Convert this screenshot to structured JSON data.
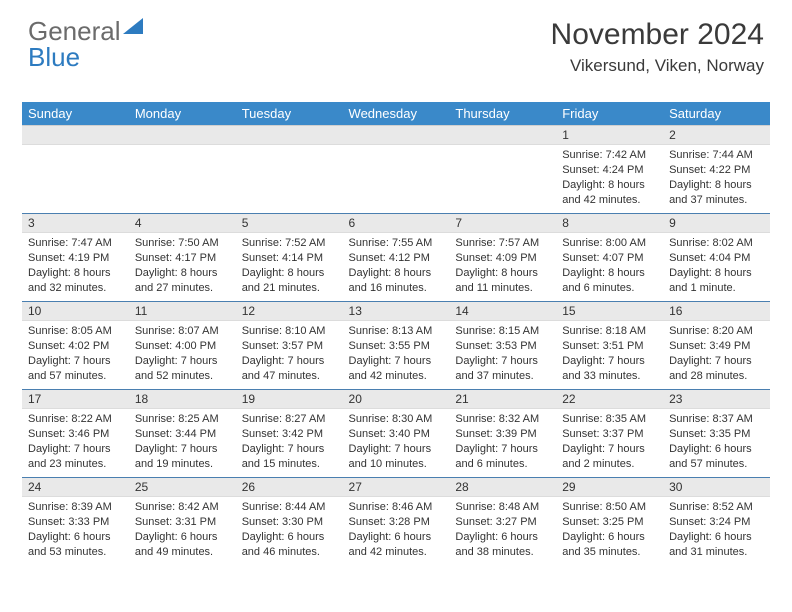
{
  "logo": {
    "line1": "General",
    "line2": "Blue"
  },
  "header": {
    "month_title": "November 2024",
    "location": "Vikersund, Viken, Norway"
  },
  "calendar": {
    "type": "table",
    "columns": [
      "Sunday",
      "Monday",
      "Tuesday",
      "Wednesday",
      "Thursday",
      "Friday",
      "Saturday"
    ],
    "header_bg": "#3a89c9",
    "header_fg": "#ffffff",
    "row_border_color": "#4a7fb0",
    "daynum_bg": "#e9e9e9",
    "body_fontsize": 11,
    "weeks": [
      [
        null,
        null,
        null,
        null,
        null,
        {
          "n": "1",
          "sunrise": "Sunrise: 7:42 AM",
          "sunset": "Sunset: 4:24 PM",
          "daylight1": "Daylight: 8 hours",
          "daylight2": "and 42 minutes."
        },
        {
          "n": "2",
          "sunrise": "Sunrise: 7:44 AM",
          "sunset": "Sunset: 4:22 PM",
          "daylight1": "Daylight: 8 hours",
          "daylight2": "and 37 minutes."
        }
      ],
      [
        {
          "n": "3",
          "sunrise": "Sunrise: 7:47 AM",
          "sunset": "Sunset: 4:19 PM",
          "daylight1": "Daylight: 8 hours",
          "daylight2": "and 32 minutes."
        },
        {
          "n": "4",
          "sunrise": "Sunrise: 7:50 AM",
          "sunset": "Sunset: 4:17 PM",
          "daylight1": "Daylight: 8 hours",
          "daylight2": "and 27 minutes."
        },
        {
          "n": "5",
          "sunrise": "Sunrise: 7:52 AM",
          "sunset": "Sunset: 4:14 PM",
          "daylight1": "Daylight: 8 hours",
          "daylight2": "and 21 minutes."
        },
        {
          "n": "6",
          "sunrise": "Sunrise: 7:55 AM",
          "sunset": "Sunset: 4:12 PM",
          "daylight1": "Daylight: 8 hours",
          "daylight2": "and 16 minutes."
        },
        {
          "n": "7",
          "sunrise": "Sunrise: 7:57 AM",
          "sunset": "Sunset: 4:09 PM",
          "daylight1": "Daylight: 8 hours",
          "daylight2": "and 11 minutes."
        },
        {
          "n": "8",
          "sunrise": "Sunrise: 8:00 AM",
          "sunset": "Sunset: 4:07 PM",
          "daylight1": "Daylight: 8 hours",
          "daylight2": "and 6 minutes."
        },
        {
          "n": "9",
          "sunrise": "Sunrise: 8:02 AM",
          "sunset": "Sunset: 4:04 PM",
          "daylight1": "Daylight: 8 hours",
          "daylight2": "and 1 minute."
        }
      ],
      [
        {
          "n": "10",
          "sunrise": "Sunrise: 8:05 AM",
          "sunset": "Sunset: 4:02 PM",
          "daylight1": "Daylight: 7 hours",
          "daylight2": "and 57 minutes."
        },
        {
          "n": "11",
          "sunrise": "Sunrise: 8:07 AM",
          "sunset": "Sunset: 4:00 PM",
          "daylight1": "Daylight: 7 hours",
          "daylight2": "and 52 minutes."
        },
        {
          "n": "12",
          "sunrise": "Sunrise: 8:10 AM",
          "sunset": "Sunset: 3:57 PM",
          "daylight1": "Daylight: 7 hours",
          "daylight2": "and 47 minutes."
        },
        {
          "n": "13",
          "sunrise": "Sunrise: 8:13 AM",
          "sunset": "Sunset: 3:55 PM",
          "daylight1": "Daylight: 7 hours",
          "daylight2": "and 42 minutes."
        },
        {
          "n": "14",
          "sunrise": "Sunrise: 8:15 AM",
          "sunset": "Sunset: 3:53 PM",
          "daylight1": "Daylight: 7 hours",
          "daylight2": "and 37 minutes."
        },
        {
          "n": "15",
          "sunrise": "Sunrise: 8:18 AM",
          "sunset": "Sunset: 3:51 PM",
          "daylight1": "Daylight: 7 hours",
          "daylight2": "and 33 minutes."
        },
        {
          "n": "16",
          "sunrise": "Sunrise: 8:20 AM",
          "sunset": "Sunset: 3:49 PM",
          "daylight1": "Daylight: 7 hours",
          "daylight2": "and 28 minutes."
        }
      ],
      [
        {
          "n": "17",
          "sunrise": "Sunrise: 8:22 AM",
          "sunset": "Sunset: 3:46 PM",
          "daylight1": "Daylight: 7 hours",
          "daylight2": "and 23 minutes."
        },
        {
          "n": "18",
          "sunrise": "Sunrise: 8:25 AM",
          "sunset": "Sunset: 3:44 PM",
          "daylight1": "Daylight: 7 hours",
          "daylight2": "and 19 minutes."
        },
        {
          "n": "19",
          "sunrise": "Sunrise: 8:27 AM",
          "sunset": "Sunset: 3:42 PM",
          "daylight1": "Daylight: 7 hours",
          "daylight2": "and 15 minutes."
        },
        {
          "n": "20",
          "sunrise": "Sunrise: 8:30 AM",
          "sunset": "Sunset: 3:40 PM",
          "daylight1": "Daylight: 7 hours",
          "daylight2": "and 10 minutes."
        },
        {
          "n": "21",
          "sunrise": "Sunrise: 8:32 AM",
          "sunset": "Sunset: 3:39 PM",
          "daylight1": "Daylight: 7 hours",
          "daylight2": "and 6 minutes."
        },
        {
          "n": "22",
          "sunrise": "Sunrise: 8:35 AM",
          "sunset": "Sunset: 3:37 PM",
          "daylight1": "Daylight: 7 hours",
          "daylight2": "and 2 minutes."
        },
        {
          "n": "23",
          "sunrise": "Sunrise: 8:37 AM",
          "sunset": "Sunset: 3:35 PM",
          "daylight1": "Daylight: 6 hours",
          "daylight2": "and 57 minutes."
        }
      ],
      [
        {
          "n": "24",
          "sunrise": "Sunrise: 8:39 AM",
          "sunset": "Sunset: 3:33 PM",
          "daylight1": "Daylight: 6 hours",
          "daylight2": "and 53 minutes."
        },
        {
          "n": "25",
          "sunrise": "Sunrise: 8:42 AM",
          "sunset": "Sunset: 3:31 PM",
          "daylight1": "Daylight: 6 hours",
          "daylight2": "and 49 minutes."
        },
        {
          "n": "26",
          "sunrise": "Sunrise: 8:44 AM",
          "sunset": "Sunset: 3:30 PM",
          "daylight1": "Daylight: 6 hours",
          "daylight2": "and 46 minutes."
        },
        {
          "n": "27",
          "sunrise": "Sunrise: 8:46 AM",
          "sunset": "Sunset: 3:28 PM",
          "daylight1": "Daylight: 6 hours",
          "daylight2": "and 42 minutes."
        },
        {
          "n": "28",
          "sunrise": "Sunrise: 8:48 AM",
          "sunset": "Sunset: 3:27 PM",
          "daylight1": "Daylight: 6 hours",
          "daylight2": "and 38 minutes."
        },
        {
          "n": "29",
          "sunrise": "Sunrise: 8:50 AM",
          "sunset": "Sunset: 3:25 PM",
          "daylight1": "Daylight: 6 hours",
          "daylight2": "and 35 minutes."
        },
        {
          "n": "30",
          "sunrise": "Sunrise: 8:52 AM",
          "sunset": "Sunset: 3:24 PM",
          "daylight1": "Daylight: 6 hours",
          "daylight2": "and 31 minutes."
        }
      ]
    ]
  }
}
